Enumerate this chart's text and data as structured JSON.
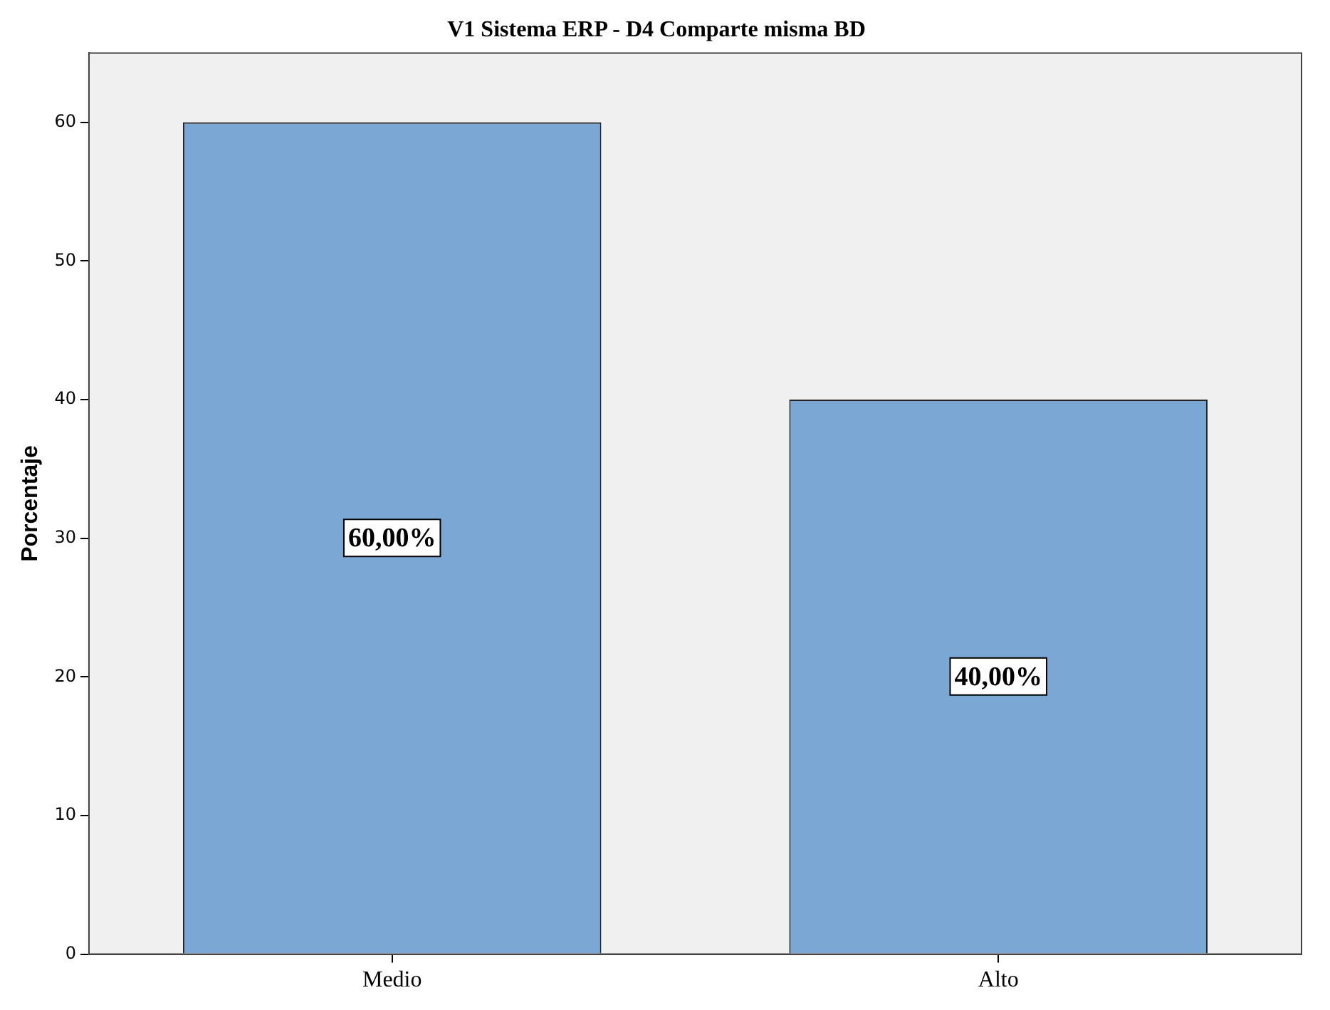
{
  "chart_data": {
    "type": "bar",
    "title": "V1 Sistema ERP - D4 Comparte misma BD",
    "ylabel": "Porcentaje",
    "categories": [
      "Medio",
      "Alto"
    ],
    "values": [
      60,
      40
    ],
    "value_labels": [
      "60,00%",
      "40,00%"
    ],
    "color": "#7ba7d4",
    "ylim": [
      0,
      65
    ],
    "yticks": [
      0,
      10,
      20,
      30,
      40,
      50,
      60
    ],
    "legend": false
  }
}
